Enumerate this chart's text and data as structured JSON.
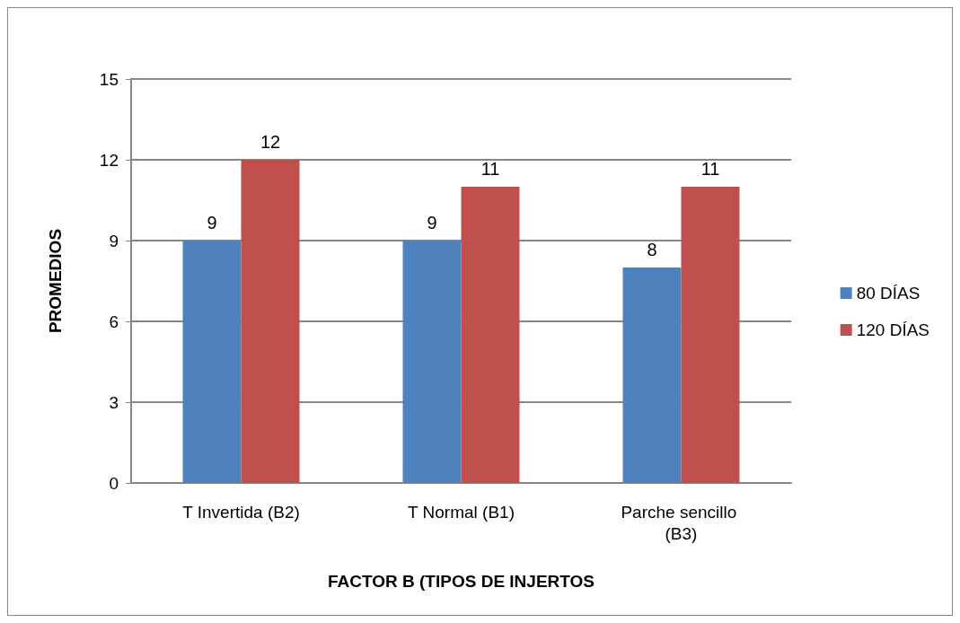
{
  "chart_data": {
    "type": "bar",
    "xlabel": "FACTOR B (TIPOS DE INJERTOS",
    "ylabel": "PROMEDIOS",
    "categories": [
      "T Invertida (B2)",
      "T Normal (B1)",
      "Parche sencillo (B3)"
    ],
    "series": [
      {
        "name": "80 DÍAS",
        "color": "#4f81bd",
        "values": [
          9,
          9,
          8
        ]
      },
      {
        "name": "120 DÍAS",
        "color": "#c0504d",
        "values": [
          12,
          11,
          11
        ]
      }
    ],
    "ylim": [
      0,
      15
    ],
    "yticks": [
      0,
      3,
      6,
      9,
      12,
      15
    ],
    "grid": "y",
    "legend": "right",
    "data_labels": true
  }
}
